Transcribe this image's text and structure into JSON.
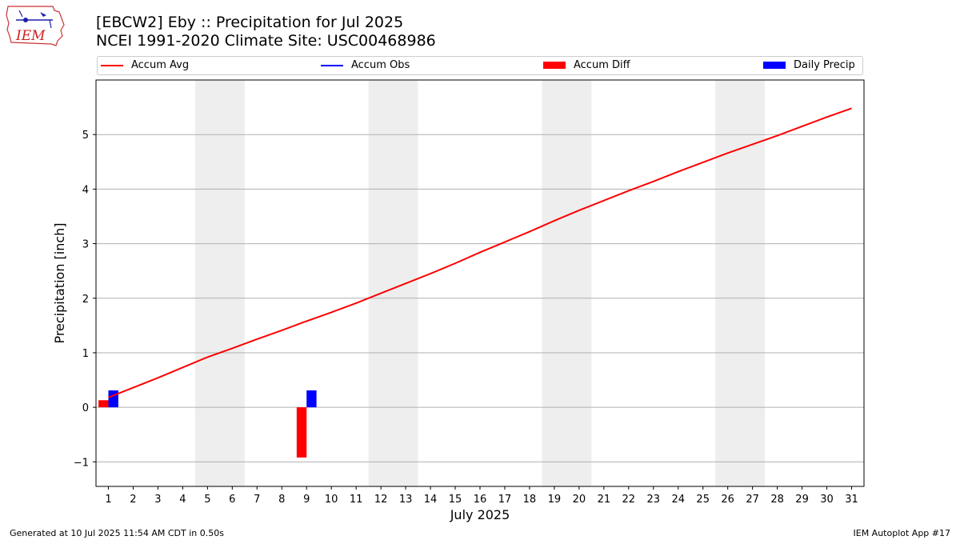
{
  "title_line1": "[EBCW2] Eby :: Precipitation for Jul 2025",
  "title_line2": "NCEI 1991-2020 Climate Site: USC00468986",
  "logo_text": "IEM",
  "footer_left": "Generated at 10 Jul 2025 11:54 AM CDT in 0.50s",
  "footer_right": "IEM Autoplot App #17",
  "legend": {
    "accum_avg": "Accum Avg",
    "accum_obs": "Accum Obs",
    "accum_diff": "Accum Diff",
    "daily_precip": "Daily Precip"
  },
  "colors": {
    "accum_avg": "#ff0000",
    "accum_obs": "#0000ff",
    "accum_diff": "#ff0000",
    "daily_precip": "#0000ff",
    "weekend_band": "#eeeeee",
    "grid": "#b0b0b0"
  },
  "chart_data": {
    "type": "bar",
    "xlabel": "July 2025",
    "ylabel": "Precipitation [inch]",
    "xlim": [
      0.5,
      31.5
    ],
    "ylim": [
      -1.45,
      6.0
    ],
    "yticks": [
      -1,
      0,
      1,
      2,
      3,
      4,
      5
    ],
    "ytick_labels": [
      "−1",
      "0",
      "1",
      "2",
      "3",
      "4",
      "5"
    ],
    "grid": "horizontal",
    "legend_position": "top",
    "categories": [
      "1",
      "2",
      "3",
      "4",
      "5",
      "6",
      "7",
      "8",
      "9",
      "10",
      "11",
      "12",
      "13",
      "14",
      "15",
      "16",
      "17",
      "18",
      "19",
      "20",
      "21",
      "22",
      "23",
      "24",
      "25",
      "26",
      "27",
      "28",
      "29",
      "30",
      "31"
    ],
    "weekend_days": [
      [
        5,
        6
      ],
      [
        12,
        13
      ],
      [
        19,
        20
      ],
      [
        26,
        27
      ]
    ],
    "series": [
      {
        "name": "Accum Avg",
        "type": "line",
        "x": [
          1,
          2,
          3,
          4,
          5,
          6,
          7,
          8,
          9,
          10,
          11,
          12,
          13,
          14,
          15,
          16,
          17,
          18,
          19,
          20,
          21,
          22,
          23,
          24,
          25,
          26,
          27,
          28,
          29,
          30,
          31
        ],
        "values": [
          0.18,
          0.36,
          0.54,
          0.73,
          0.92,
          1.08,
          1.25,
          1.41,
          1.58,
          1.74,
          1.91,
          2.09,
          2.27,
          2.45,
          2.64,
          2.84,
          3.03,
          3.22,
          3.42,
          3.61,
          3.79,
          3.97,
          4.14,
          4.32,
          4.49,
          4.66,
          4.82,
          4.98,
          5.15,
          5.32,
          5.48
        ]
      },
      {
        "name": "Accum Obs",
        "type": "line",
        "x": [],
        "values": []
      },
      {
        "name": "Accum Diff",
        "type": "bar",
        "x": [
          1,
          9
        ],
        "values": [
          0.13,
          -0.92
        ]
      },
      {
        "name": "Daily Precip",
        "type": "bar",
        "x": [
          1,
          9
        ],
        "values": [
          0.31,
          0.31
        ]
      }
    ]
  }
}
